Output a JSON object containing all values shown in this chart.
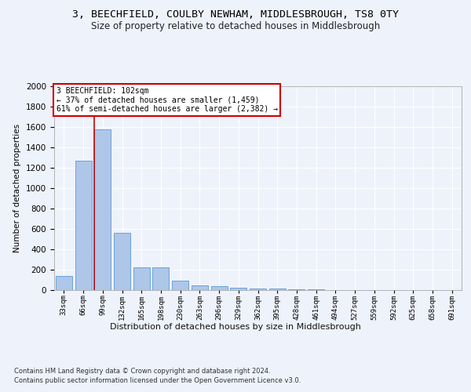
{
  "title_line1": "3, BEECHFIELD, COULBY NEWHAM, MIDDLESBROUGH, TS8 0TY",
  "title_line2": "Size of property relative to detached houses in Middlesbrough",
  "xlabel": "Distribution of detached houses by size in Middlesbrough",
  "ylabel": "Number of detached properties",
  "footer_line1": "Contains HM Land Registry data © Crown copyright and database right 2024.",
  "footer_line2": "Contains public sector information licensed under the Open Government Licence v3.0.",
  "annotation_line1": "3 BEECHFIELD: 102sqm",
  "annotation_line2": "← 37% of detached houses are smaller (1,459)",
  "annotation_line3": "61% of semi-detached houses are larger (2,382) →",
  "bar_color": "#aec6e8",
  "bar_edge_color": "#5b9bd5",
  "marker_line_color": "#cc0000",
  "annotation_box_color": "#cc0000",
  "categories": [
    "33sqm",
    "66sqm",
    "99sqm",
    "132sqm",
    "165sqm",
    "198sqm",
    "230sqm",
    "263sqm",
    "296sqm",
    "329sqm",
    "362sqm",
    "395sqm",
    "428sqm",
    "461sqm",
    "494sqm",
    "527sqm",
    "559sqm",
    "592sqm",
    "625sqm",
    "658sqm",
    "691sqm"
  ],
  "values": [
    140,
    1270,
    1580,
    565,
    220,
    220,
    95,
    50,
    40,
    22,
    15,
    12,
    8,
    5,
    3,
    2,
    1,
    1,
    0,
    0,
    0
  ],
  "marker_bar_index": 2,
  "ylim": [
    0,
    2000
  ],
  "yticks": [
    0,
    200,
    400,
    600,
    800,
    1000,
    1200,
    1400,
    1600,
    1800,
    2000
  ],
  "background_color": "#eef2fb",
  "plot_bg_color": "#eef2fb",
  "fig_width": 6.0,
  "fig_height": 5.0,
  "fig_dpi": 100
}
